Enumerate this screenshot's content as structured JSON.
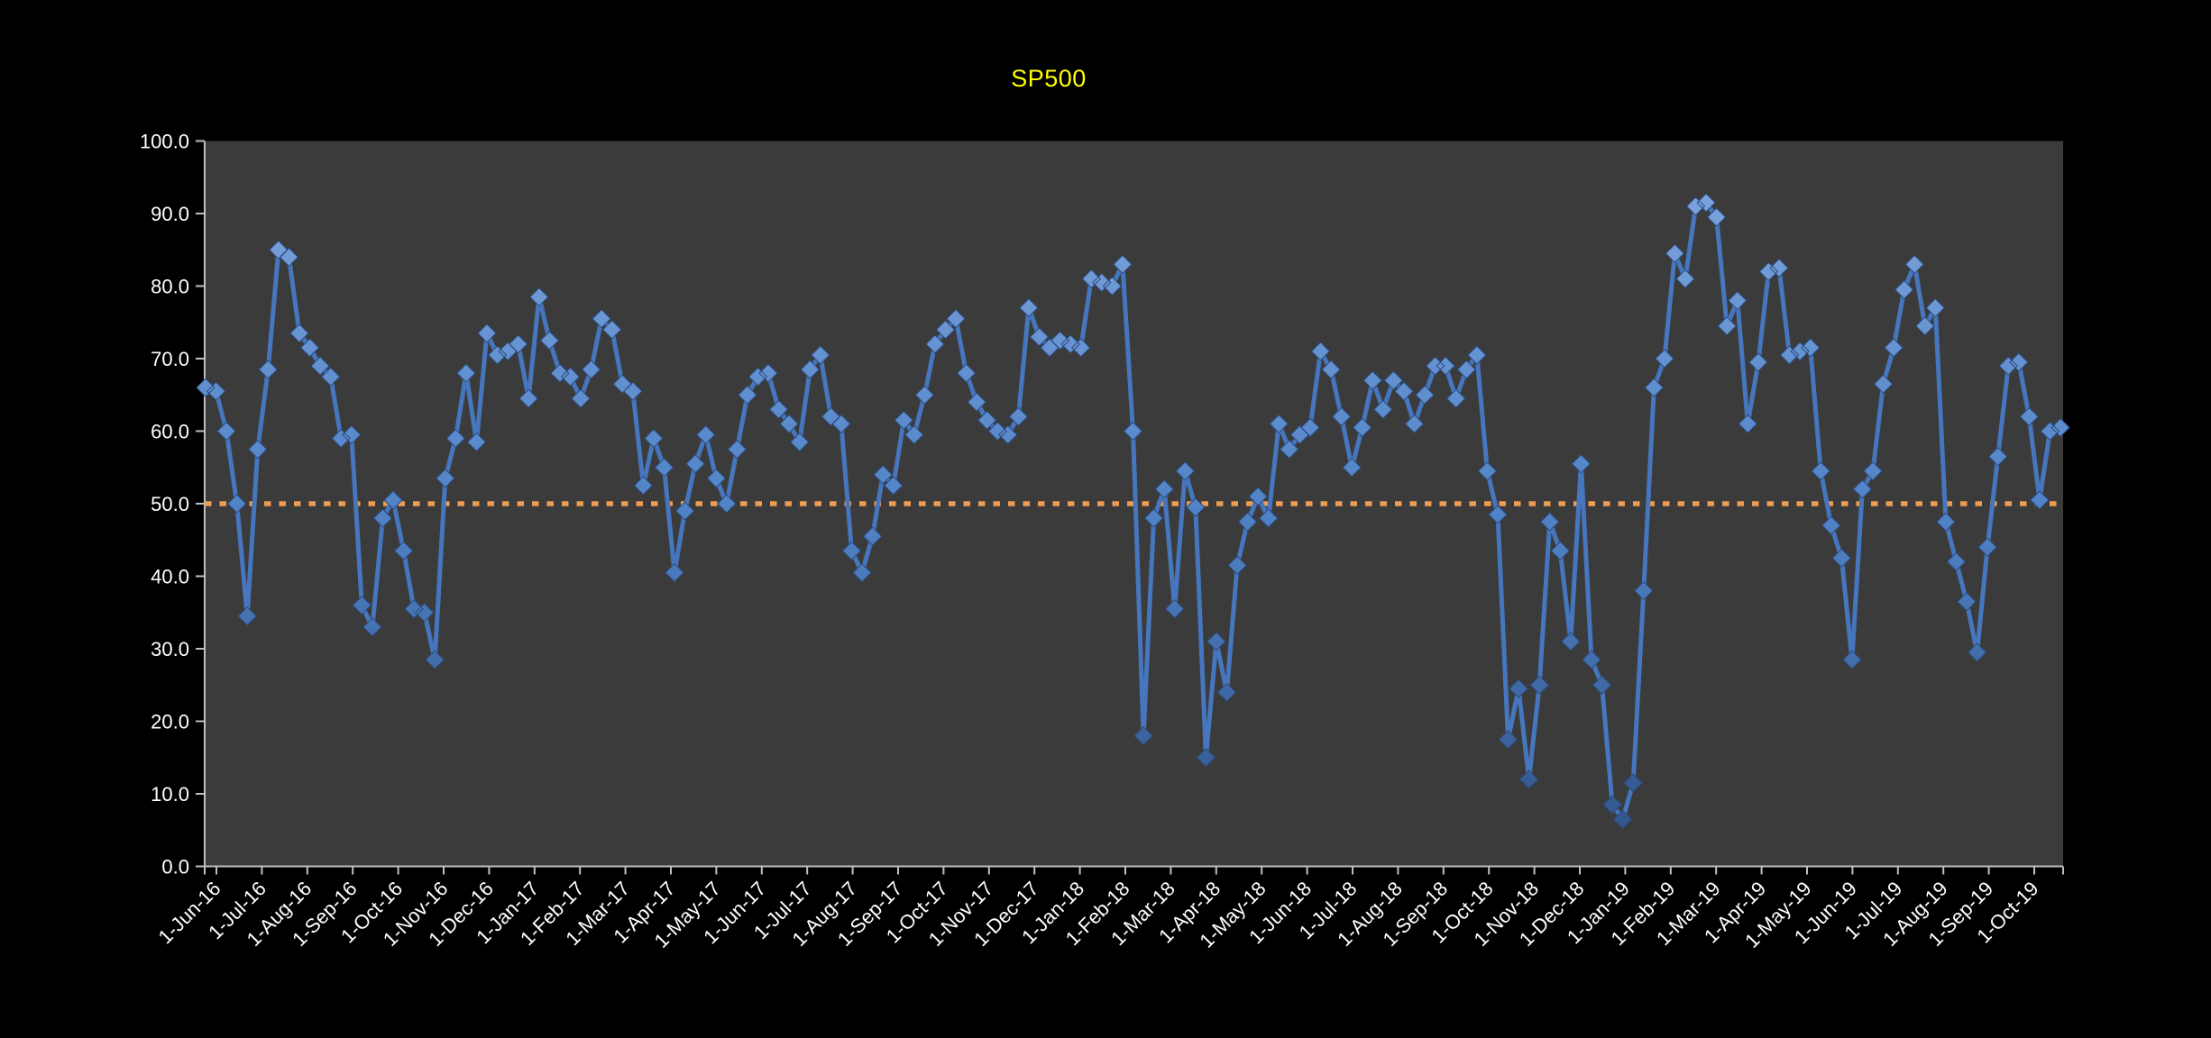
{
  "window": {
    "background_color": "#000000"
  },
  "chart_data": {
    "type": "line",
    "title": "SP500",
    "title_color": "#FFFF00",
    "plot_bg_color": "#3B3B3B",
    "axis_color": "#BFBFBF",
    "tick_label_color": "#FFFFFF",
    "grid": "off",
    "legend": "none",
    "ylim": [
      0,
      100
    ],
    "y_tick_step": 10,
    "y_tick_labels": [
      "100.0",
      "90.0",
      "80.0",
      "70.0",
      "60.0",
      "50.0",
      "40.0",
      "30.0",
      "20.0",
      "10.0",
      "0.0"
    ],
    "x_tick_labels": [
      "1-Jun-16",
      "1-Jul-16",
      "1-Aug-16",
      "1-Sep-16",
      "1-Oct-16",
      "1-Nov-16",
      "1-Dec-16",
      "1-Jan-17",
      "1-Feb-17",
      "1-Mar-17",
      "1-Apr-17",
      "1-May-17",
      "1-Jun-17",
      "1-Jul-17",
      "1-Aug-17",
      "1-Sep-17",
      "1-Oct-17",
      "1-Nov-17",
      "1-Dec-17",
      "1-Jan-18",
      "1-Feb-18",
      "1-Mar-18",
      "1-Apr-18",
      "1-May-18",
      "1-Jun-18",
      "1-Jul-18",
      "1-Aug-18",
      "1-Sep-18",
      "1-Oct-18",
      "1-Nov-18",
      "1-Dec-18",
      "1-Jan-19",
      "1-Feb-19",
      "1-Mar-19",
      "1-Apr-19",
      "1-May-19",
      "1-Jun-19",
      "1-Jul-19",
      "1-Aug-19",
      "1-Sep-19",
      "1-Oct-19"
    ],
    "ref_line": {
      "value": 50.0,
      "color": "#ED9C54",
      "style": "dotted"
    },
    "series": [
      {
        "name": "SP500",
        "frequency": "weekly",
        "line_color": "#4676BE",
        "marker": "diamond-3d",
        "marker_color_top": "#7BA2DC",
        "marker_color_mid": "#5083C6",
        "marker_color_bottom": "#33568C",
        "values": [
          66,
          65.5,
          60,
          50,
          34.5,
          57.5,
          68.5,
          85,
          84,
          73.5,
          71.5,
          69,
          67.5,
          59,
          59.5,
          36,
          33,
          48,
          50.5,
          43.5,
          35.5,
          35,
          28.5,
          53.5,
          59,
          68,
          58.5,
          73.5,
          70.5,
          71,
          72,
          64.5,
          78.5,
          72.5,
          68,
          67.5,
          64.5,
          68.5,
          75.5,
          74,
          66.5,
          65.5,
          52.5,
          59,
          55,
          40.5,
          49,
          55.5,
          59.5,
          53.5,
          50,
          57.5,
          65,
          67.5,
          68,
          63,
          61,
          58.5,
          68.5,
          70.5,
          62,
          61,
          43.5,
          40.5,
          45.5,
          54,
          52.5,
          61.5,
          59.5,
          65,
          72,
          74,
          75.5,
          68,
          64,
          61.5,
          60,
          59.5,
          62,
          77,
          73,
          71.5,
          72.5,
          72,
          71.5,
          81,
          80.5,
          80,
          83,
          60,
          18,
          48,
          52,
          35.5,
          54.5,
          49.5,
          15,
          31,
          24,
          41.5,
          47.5,
          51,
          48,
          61,
          57.5,
          59.5,
          60.5,
          71,
          68.5,
          62,
          55,
          60.5,
          67,
          63,
          67,
          65.5,
          61,
          65,
          69,
          69,
          64.5,
          68.5,
          70.5,
          54.5,
          48.5,
          17.5,
          24.5,
          12,
          25,
          47.5,
          43.5,
          31,
          55.5,
          28.5,
          25,
          8.5,
          6.5,
          11.5,
          38,
          66,
          70,
          84.5,
          81,
          91,
          91.5,
          89.5,
          74.5,
          78,
          61,
          69.5,
          82,
          82.5,
          70.5,
          71,
          71.5,
          54.5,
          47,
          42.5,
          28.5,
          52,
          54.5,
          66.5,
          71.5,
          79.5,
          83,
          74.5,
          77,
          47.5,
          42,
          36.5,
          29.5,
          44,
          56.5,
          69,
          69.5,
          62,
          50.5,
          60,
          60.5
        ]
      }
    ]
  }
}
